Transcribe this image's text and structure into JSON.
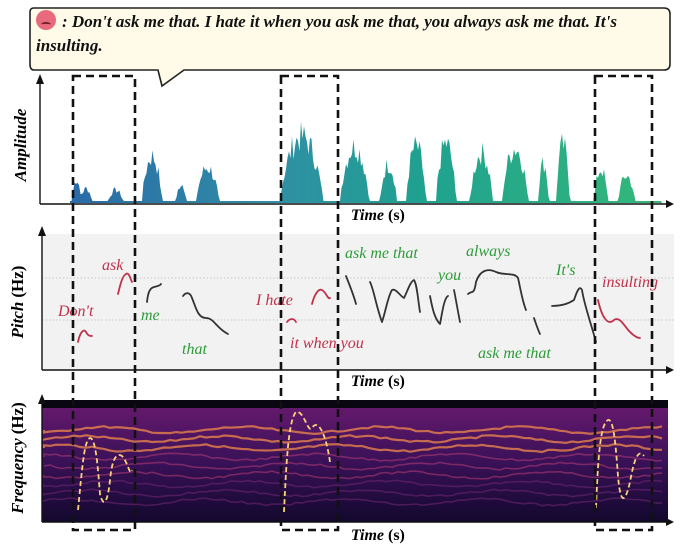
{
  "speech_bubble": {
    "emoji_icon": "angry-face-icon",
    "speaker_separator": ":",
    "text": "Don't ask me that. I hate it when you ask me that, you always ask me that. It's insulting."
  },
  "panels": {
    "amplitude": {
      "ylabel": "Amplitude",
      "xlabel_main": "Time",
      "xlabel_unit": "(s)"
    },
    "pitch": {
      "ylabel_main": "Pitch",
      "ylabel_unit": "(Hz)",
      "xlabel_main": "Time",
      "xlabel_unit": "(s)",
      "words": [
        {
          "text": "Don't",
          "color": "#c0324a"
        },
        {
          "text": "ask",
          "color": "#c0324a"
        },
        {
          "text": "me",
          "color": "#2e9a3a"
        },
        {
          "text": "that",
          "color": "#2e9a3a"
        },
        {
          "text": "I hate",
          "color": "#c0324a"
        },
        {
          "text": "it when you",
          "color": "#c0324a"
        },
        {
          "text": "ask me that",
          "color": "#2e9a3a"
        },
        {
          "text": "you",
          "color": "#2e9a3a"
        },
        {
          "text": "always",
          "color": "#2e9a3a"
        },
        {
          "text": "ask me that",
          "color": "#2e9a3a"
        },
        {
          "text": "It's",
          "color": "#2e9a3a"
        },
        {
          "text": "insulting",
          "color": "#c0324a"
        }
      ]
    },
    "spectrogram": {
      "ylabel_main": "Frequency",
      "ylabel_unit": "(Hz)",
      "xlabel_main": "Time",
      "xlabel_unit": "(s)"
    }
  },
  "colors": {
    "emphasis_red": "#c0324a",
    "neutral_green": "#2e9a3a",
    "pitch_curve": "#333333",
    "contour_dashed": "#f7d27a"
  }
}
